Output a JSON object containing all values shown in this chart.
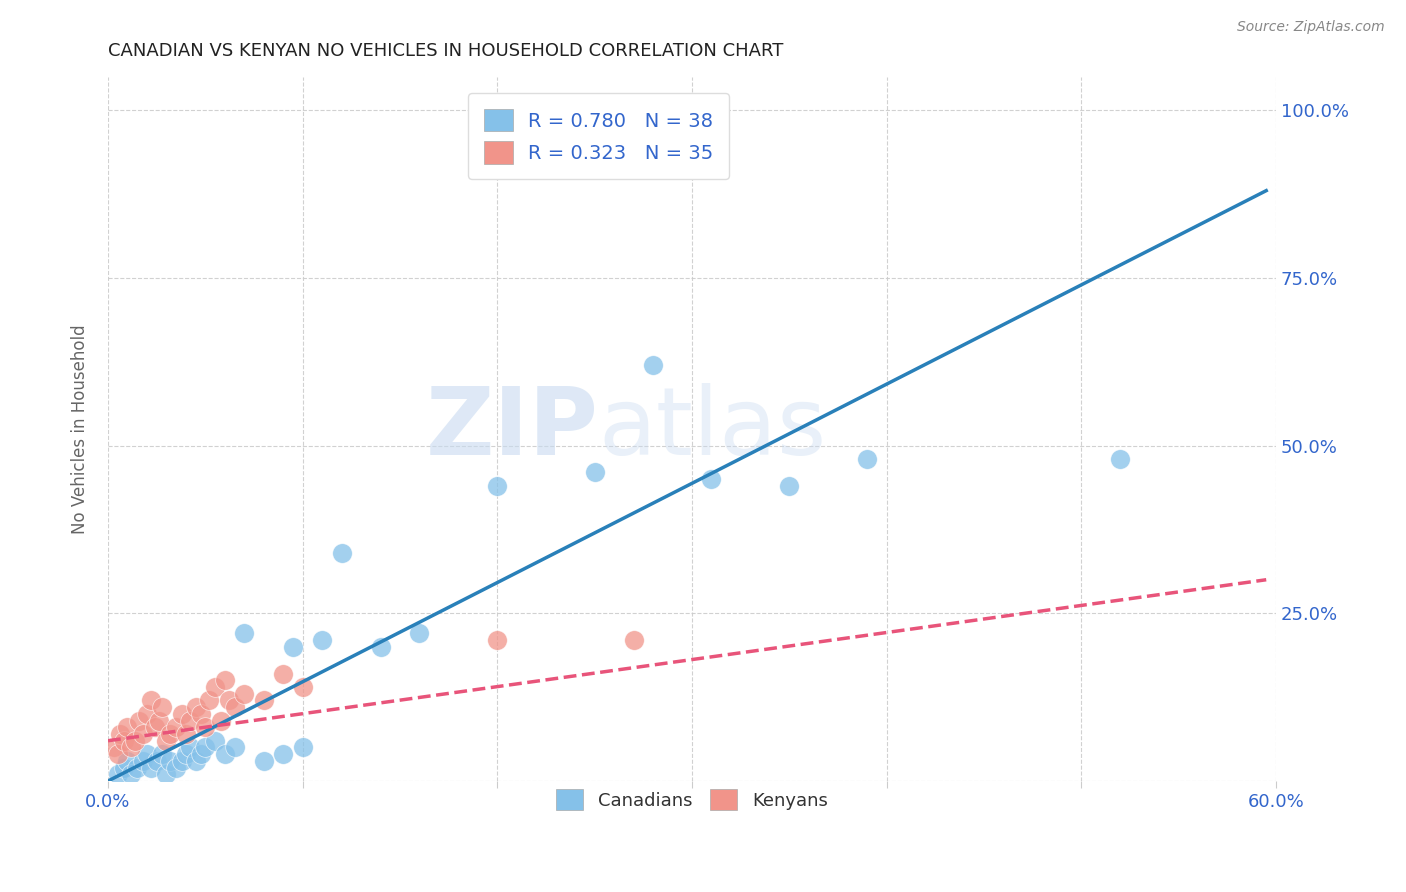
{
  "title": "CANADIAN VS KENYAN NO VEHICLES IN HOUSEHOLD CORRELATION CHART",
  "source": "Source: ZipAtlas.com",
  "ylabel": "No Vehicles in Household",
  "xlabel": "",
  "xlim": [
    0.0,
    0.6
  ],
  "ylim": [
    0.0,
    1.05
  ],
  "xticks": [
    0.0,
    0.1,
    0.2,
    0.3,
    0.4,
    0.5,
    0.6
  ],
  "xticklabels": [
    "0.0%",
    "",
    "",
    "",
    "",
    "",
    "60.0%"
  ],
  "ytick_positions": [
    0.0,
    0.25,
    0.5,
    0.75,
    1.0
  ],
  "yticklabels": [
    "",
    "25.0%",
    "50.0%",
    "75.0%",
    "100.0%"
  ],
  "canadian_color": "#85c1e9",
  "kenyan_color": "#f1948a",
  "canadian_line_color": "#2980b9",
  "kenyan_line_color": "#e8547a",
  "legend_R_canadian": "R = 0.780",
  "legend_N_canadian": "N = 38",
  "legend_R_kenyan": "R = 0.323",
  "legend_N_kenyan": "N = 35",
  "watermark_zip": "ZIP",
  "watermark_atlas": "atlas",
  "canadian_x": [
    0.005,
    0.008,
    0.01,
    0.012,
    0.015,
    0.018,
    0.02,
    0.022,
    0.025,
    0.028,
    0.03,
    0.032,
    0.035,
    0.038,
    0.04,
    0.042,
    0.045,
    0.048,
    0.05,
    0.055,
    0.06,
    0.065,
    0.07,
    0.08,
    0.09,
    0.095,
    0.1,
    0.11,
    0.12,
    0.14,
    0.16,
    0.2,
    0.25,
    0.28,
    0.31,
    0.35,
    0.39,
    0.52
  ],
  "canadian_y": [
    0.01,
    0.02,
    0.03,
    0.01,
    0.02,
    0.03,
    0.04,
    0.02,
    0.03,
    0.04,
    0.01,
    0.03,
    0.02,
    0.03,
    0.04,
    0.05,
    0.03,
    0.04,
    0.05,
    0.06,
    0.04,
    0.05,
    0.22,
    0.03,
    0.04,
    0.2,
    0.05,
    0.21,
    0.34,
    0.2,
    0.22,
    0.44,
    0.46,
    0.62,
    0.45,
    0.44,
    0.48,
    0.48
  ],
  "kenyan_x": [
    0.003,
    0.005,
    0.006,
    0.008,
    0.01,
    0.012,
    0.014,
    0.016,
    0.018,
    0.02,
    0.022,
    0.024,
    0.026,
    0.028,
    0.03,
    0.032,
    0.035,
    0.038,
    0.04,
    0.042,
    0.045,
    0.048,
    0.05,
    0.052,
    0.055,
    0.058,
    0.06,
    0.062,
    0.065,
    0.07,
    0.08,
    0.09,
    0.1,
    0.2,
    0.27
  ],
  "kenyan_y": [
    0.05,
    0.04,
    0.07,
    0.06,
    0.08,
    0.05,
    0.06,
    0.09,
    0.07,
    0.1,
    0.12,
    0.08,
    0.09,
    0.11,
    0.06,
    0.07,
    0.08,
    0.1,
    0.07,
    0.09,
    0.11,
    0.1,
    0.08,
    0.12,
    0.14,
    0.09,
    0.15,
    0.12,
    0.11,
    0.13,
    0.12,
    0.16,
    0.14,
    0.21,
    0.21
  ],
  "canadian_line_x": [
    0.0,
    0.595
  ],
  "canadian_line_y": [
    0.0,
    0.88
  ],
  "kenyan_line_x": [
    0.0,
    0.595
  ],
  "kenyan_line_y": [
    0.06,
    0.3
  ]
}
